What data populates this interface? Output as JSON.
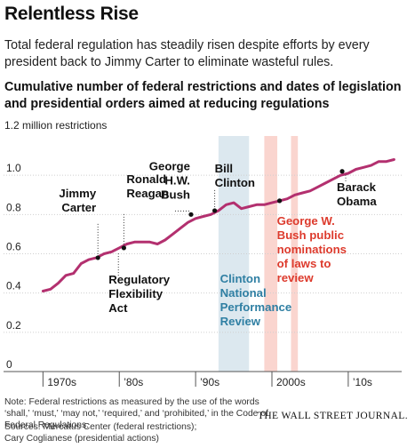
{
  "header": {
    "title": "Relentless Rise",
    "subtitle": "Total federal regulation has steadily risen despite efforts by every president back to Jimmy Carter to eliminate wasteful rules.",
    "chart_title": "Cumulative number of federal restrictions and dates of legislation and presidential orders aimed at reducing regulations",
    "unit_label": "1.2 million restrictions"
  },
  "footer": {
    "note": "Note: Federal restrictions as measured by the use of the words ‘shall,’ ‘must,’ ‘may not,’ ‘required,’ and ‘prohibited,’ in the Code of Federal Regulations.",
    "sources": [
      "Sources: Mercatus Center (federal restrictions);",
      "Cary Coglianese (presidential actions)"
    ],
    "credit": "THE WALL STREET JOURNAL."
  },
  "colors": {
    "line": "#b3306f",
    "blue_band": "#dce8ef",
    "pink_band": "#fad5cf",
    "blue_text": "#2f7fa3",
    "red_text": "#dd3b2d",
    "grid": "#cfcfcf"
  },
  "chart_data": {
    "type": "line",
    "xlim": [
      1966,
      2017
    ],
    "ylim": [
      0,
      1.2
    ],
    "y_ticks": [
      {
        "value": 0.2,
        "label": "0.2"
      },
      {
        "value": 0.4,
        "label": "0.4"
      },
      {
        "value": 0.6,
        "label": "0.6"
      },
      {
        "value": 0.8,
        "label": "0.8"
      },
      {
        "value": 1.0,
        "label": "1.0"
      },
      {
        "value": 0,
        "label": "0"
      }
    ],
    "x_ticks": [
      {
        "value": 1970,
        "label": "1970s"
      },
      {
        "value": 1980,
        "label": "’80s"
      },
      {
        "value": 1990,
        "label": "’90s"
      },
      {
        "value": 2000,
        "label": "2000s"
      },
      {
        "value": 2010,
        "label": "’10s"
      }
    ],
    "series": [
      {
        "x": [
          1970,
          1971,
          1972,
          1973,
          1974,
          1975,
          1976,
          1977,
          1978,
          1979,
          1980,
          1981,
          1982,
          1983,
          1984,
          1985,
          1986,
          1987,
          1988,
          1989,
          1990,
          1991,
          1992,
          1993,
          1994,
          1995,
          1996,
          1997,
          1998,
          1999,
          2000,
          2001,
          2002,
          2003,
          2004,
          2005,
          2006,
          2007,
          2008,
          2009,
          2010,
          2011,
          2012,
          2013,
          2014,
          2015,
          2016
        ],
        "y": [
          0.41,
          0.42,
          0.45,
          0.49,
          0.5,
          0.55,
          0.57,
          0.58,
          0.6,
          0.61,
          0.63,
          0.65,
          0.66,
          0.66,
          0.66,
          0.65,
          0.67,
          0.7,
          0.73,
          0.76,
          0.78,
          0.79,
          0.8,
          0.82,
          0.85,
          0.86,
          0.83,
          0.84,
          0.85,
          0.85,
          0.86,
          0.87,
          0.88,
          0.9,
          0.91,
          0.92,
          0.94,
          0.96,
          0.98,
          1.0,
          1.01,
          1.03,
          1.04,
          1.05,
          1.07,
          1.07,
          1.08
        ]
      }
    ],
    "bands": [
      {
        "from": 1993,
        "to": 1997,
        "color": "blue"
      },
      {
        "from": 1999,
        "to": 2000.7,
        "color": "pink"
      },
      {
        "from": 2002.5,
        "to": 2003.4,
        "color": "pink"
      }
    ],
    "annotations": [
      {
        "x": 1977.2,
        "y": 0.58,
        "lines": [
          "Jimmy",
          "Carter"
        ],
        "style": "black",
        "anchor": "end"
      },
      {
        "x": 1980.6,
        "y": 0.63,
        "lines": [
          "Ronald",
          "Reagan"
        ],
        "style": "black",
        "anchor": "start"
      },
      {
        "x": 1980.0,
        "y": 0.62,
        "lines": [
          "Regulatory",
          "Flexibility",
          "Act"
        ],
        "style": "black",
        "anchor": "start"
      },
      {
        "x": 1989.4,
        "y": 0.8,
        "lines": [
          "George",
          "H.W.",
          "Bush"
        ],
        "style": "black",
        "anchor": "end"
      },
      {
        "x": 1992.5,
        "y": 0.82,
        "lines": [
          "Bill",
          "Clinton"
        ],
        "style": "black",
        "anchor": "start"
      },
      {
        "x": 2001.0,
        "y": 0.87,
        "lines": [
          "George W.",
          "Bush public",
          "nominations",
          "of laws to",
          "review"
        ],
        "style": "red",
        "anchor": "start"
      },
      {
        "x": 2009.2,
        "y": 1.02,
        "lines": [
          "Barack",
          "Obama"
        ],
        "style": "black",
        "anchor": "start"
      },
      {
        "x": 1993.2,
        "y": null,
        "lines": [
          "Clinton",
          "National",
          "Performance",
          "Review"
        ],
        "style": "blue",
        "anchor": "start"
      }
    ]
  }
}
